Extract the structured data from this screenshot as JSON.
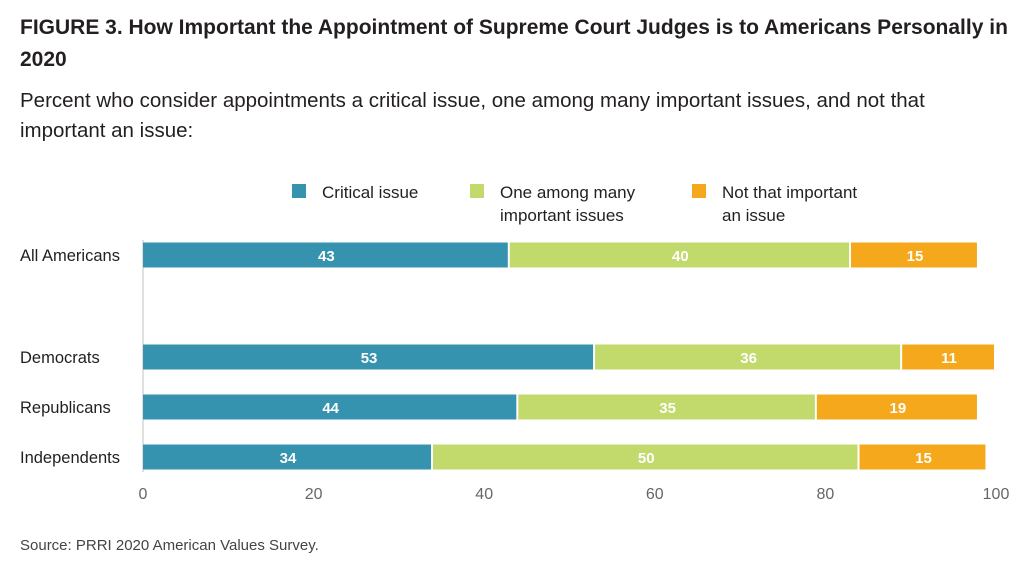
{
  "header": {
    "title": "FIGURE 3.  How Important the Appointment of Supreme Court Judges is to Americans Personally in 2020",
    "subtitle": "Percent who consider appointments a critical issue, one among many important issues, and not that important an issue:"
  },
  "footer": {
    "source": "Source: PRRI 2020 American Values Survey."
  },
  "chart_data": {
    "type": "bar",
    "orientation": "horizontal",
    "stacked": true,
    "categories": [
      "All Americans",
      "Democrats",
      "Republicans",
      "Independents"
    ],
    "series": [
      {
        "name": "Critical issue",
        "legend_lines": [
          "Critical issue"
        ],
        "color": "#3693b0",
        "values": [
          43,
          53,
          44,
          34
        ]
      },
      {
        "name": "One among many important issues",
        "legend_lines": [
          "One among many",
          "important issues"
        ],
        "color": "#c2d96b",
        "values": [
          40,
          36,
          35,
          50
        ]
      },
      {
        "name": "Not that important an issue",
        "legend_lines": [
          "Not that important",
          "an issue"
        ],
        "color": "#f5a81c",
        "values": [
          15,
          11,
          19,
          15
        ]
      }
    ],
    "xlim": [
      0,
      100
    ],
    "xticks": [
      "0",
      "20",
      "40",
      "60",
      "80",
      "100"
    ],
    "legend_position": "top",
    "grid": false
  }
}
